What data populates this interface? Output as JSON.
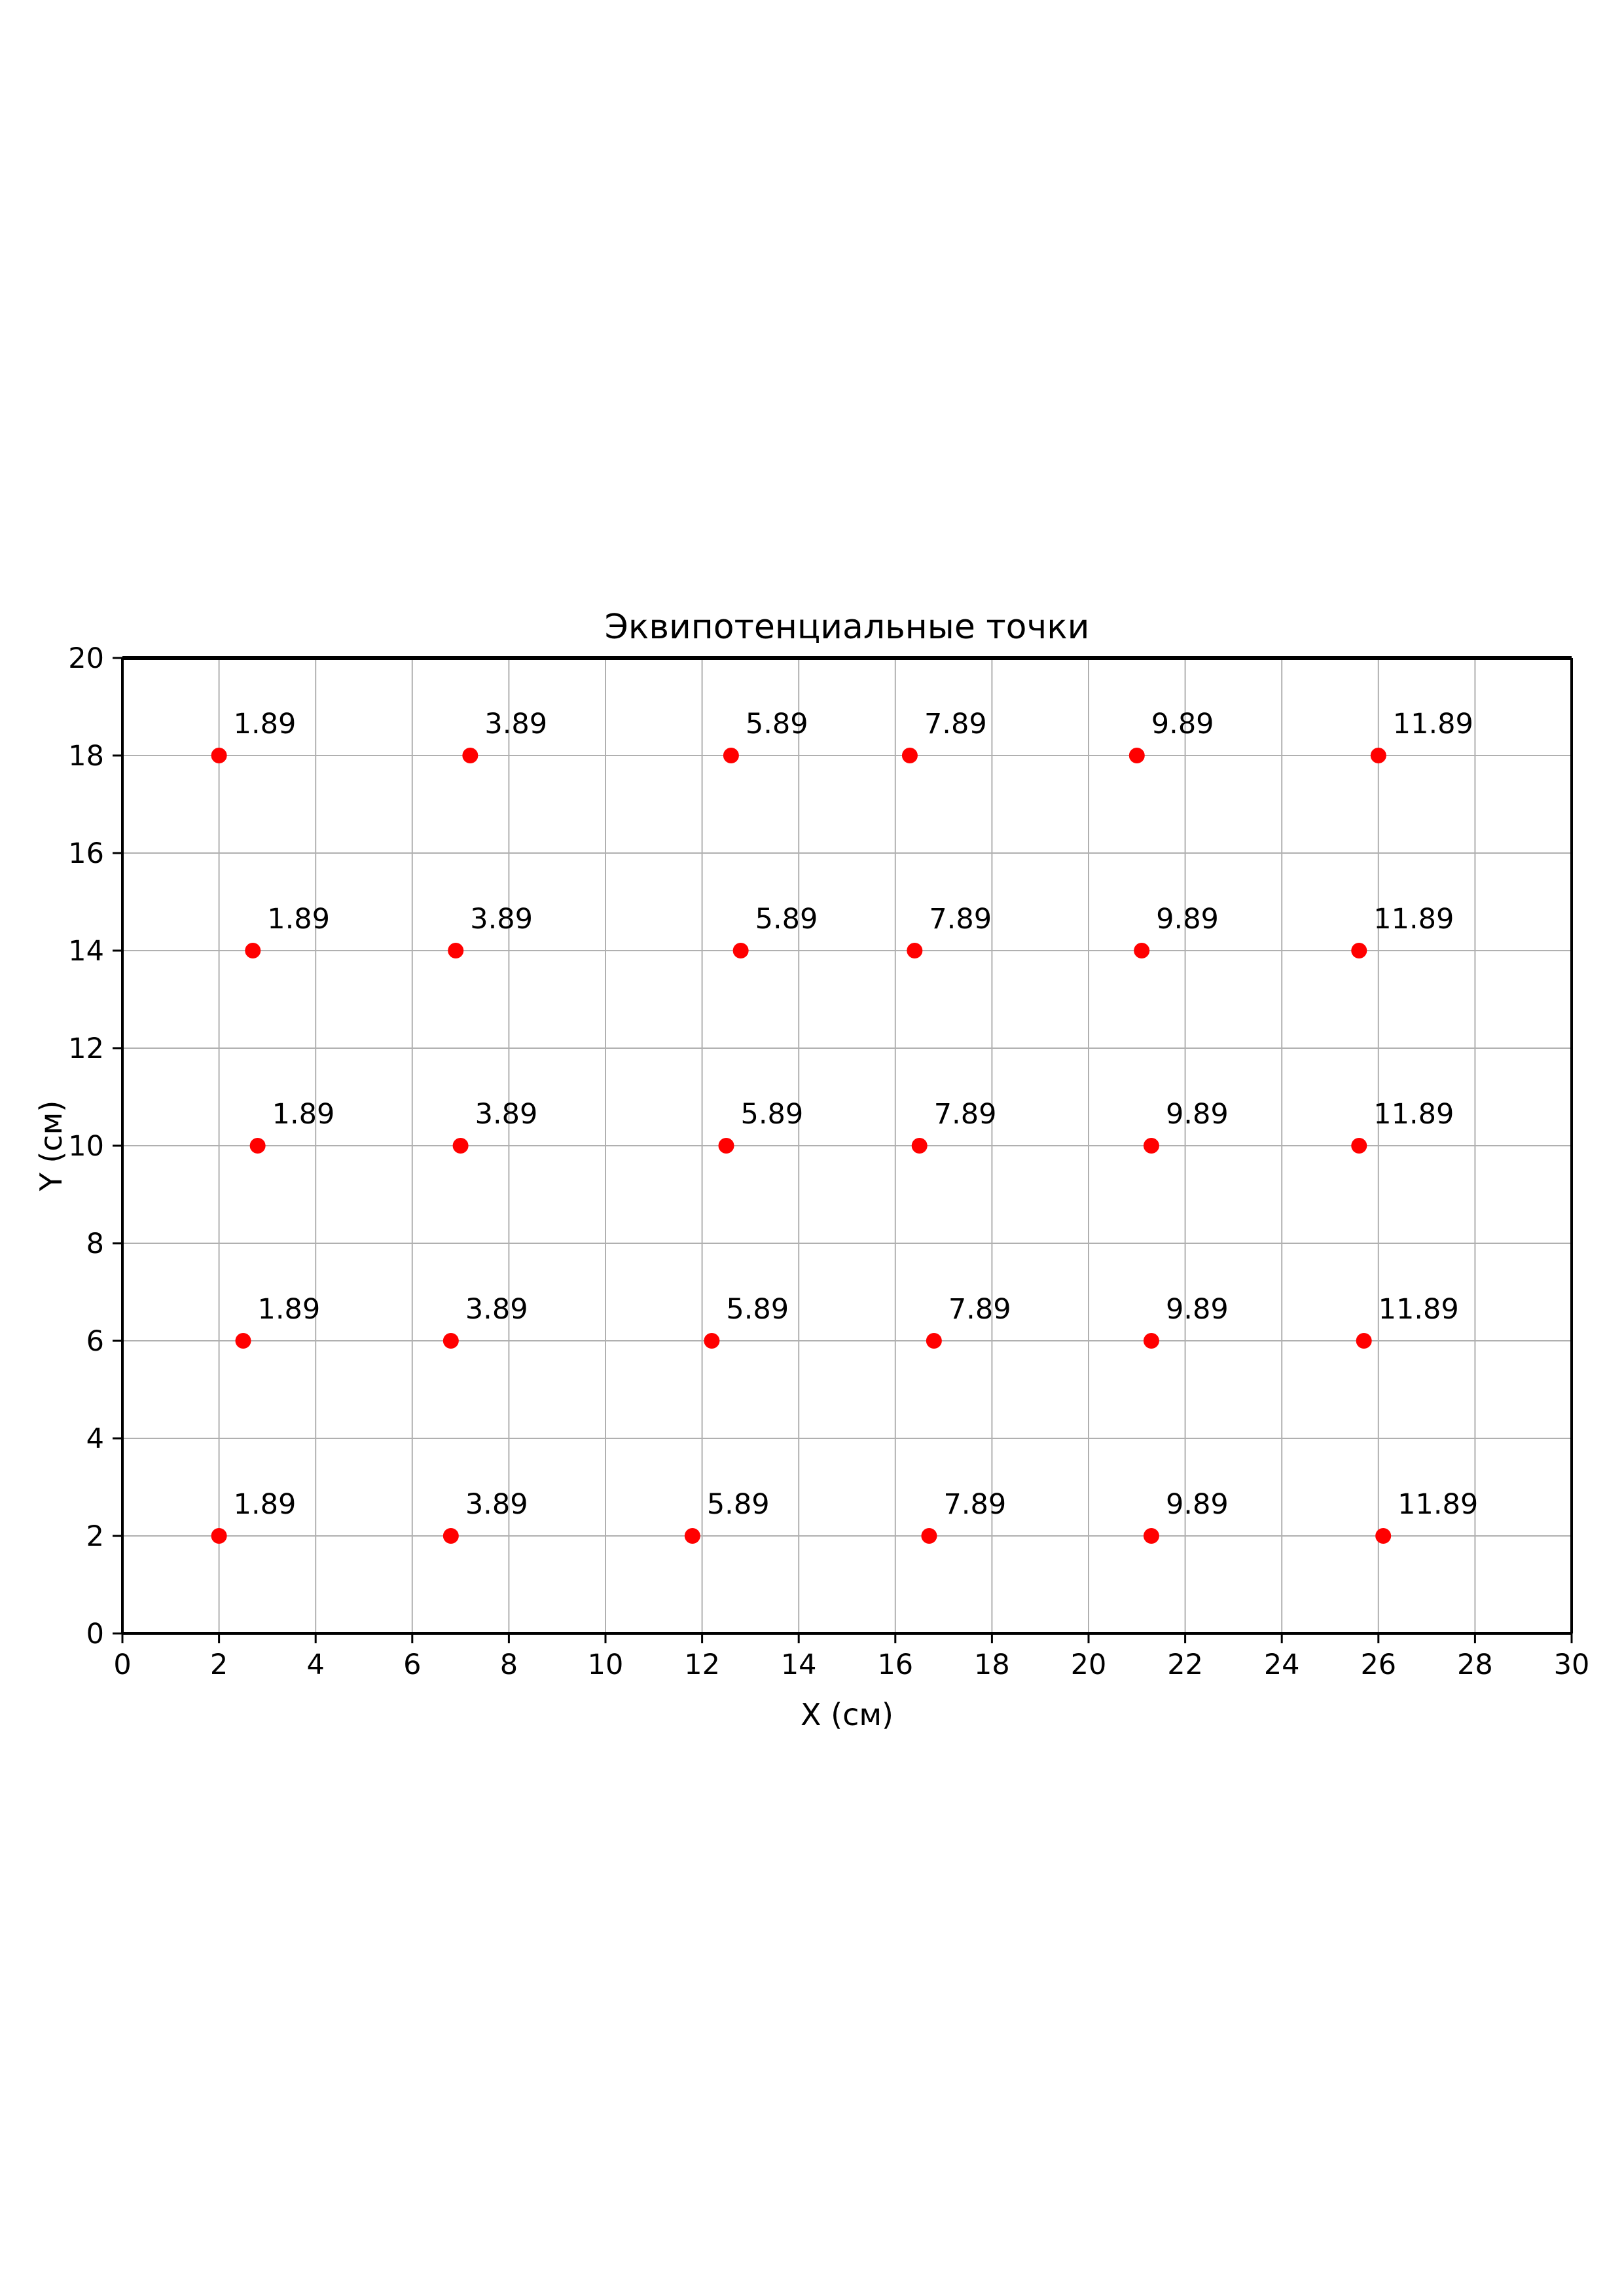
{
  "page": {
    "background": "#ffffff"
  },
  "chart_data": {
    "type": "scatter",
    "title": "Эквипотенциальные точки",
    "xlabel": "X (см)",
    "ylabel": "Y (см)",
    "xlim": [
      0,
      30
    ],
    "ylim": [
      0,
      20
    ],
    "xticks": [
      0,
      2,
      4,
      6,
      8,
      10,
      12,
      14,
      16,
      18,
      20,
      22,
      24,
      26,
      28,
      30
    ],
    "yticks": [
      0,
      2,
      4,
      6,
      8,
      10,
      12,
      14,
      16,
      18,
      20
    ],
    "grid": true,
    "grid_color": "#b0b0b0",
    "spine_color": "#000000",
    "marker_color": "#ff0000",
    "marker_radius_px": 12,
    "legend": "none",
    "rows": [
      {
        "y": 18,
        "points": [
          {
            "x": 2.0,
            "label": "1.89"
          },
          {
            "x": 7.2,
            "label": "3.89"
          },
          {
            "x": 12.6,
            "label": "5.89"
          },
          {
            "x": 16.3,
            "label": "7.89"
          },
          {
            "x": 21.0,
            "label": "9.89"
          },
          {
            "x": 26.0,
            "label": "11.89"
          }
        ]
      },
      {
        "y": 14,
        "points": [
          {
            "x": 2.7,
            "label": "1.89"
          },
          {
            "x": 6.9,
            "label": "3.89"
          },
          {
            "x": 12.8,
            "label": "5.89"
          },
          {
            "x": 16.4,
            "label": "7.89"
          },
          {
            "x": 21.1,
            "label": "9.89"
          },
          {
            "x": 25.6,
            "label": "11.89"
          }
        ]
      },
      {
        "y": 10,
        "points": [
          {
            "x": 2.8,
            "label": "1.89"
          },
          {
            "x": 7.0,
            "label": "3.89"
          },
          {
            "x": 12.5,
            "label": "5.89"
          },
          {
            "x": 16.5,
            "label": "7.89"
          },
          {
            "x": 21.3,
            "label": "9.89"
          },
          {
            "x": 25.6,
            "label": "11.89"
          }
        ]
      },
      {
        "y": 6,
        "points": [
          {
            "x": 2.5,
            "label": "1.89"
          },
          {
            "x": 6.8,
            "label": "3.89"
          },
          {
            "x": 12.2,
            "label": "5.89"
          },
          {
            "x": 16.8,
            "label": "7.89"
          },
          {
            "x": 21.3,
            "label": "9.89"
          },
          {
            "x": 25.7,
            "label": "11.89"
          }
        ]
      },
      {
        "y": 2,
        "points": [
          {
            "x": 2.0,
            "label": "1.89"
          },
          {
            "x": 6.8,
            "label": "3.89"
          },
          {
            "x": 11.8,
            "label": "5.89"
          },
          {
            "x": 16.7,
            "label": "7.89"
          },
          {
            "x": 21.3,
            "label": "9.89"
          },
          {
            "x": 26.1,
            "label": "11.89"
          }
        ]
      }
    ]
  }
}
